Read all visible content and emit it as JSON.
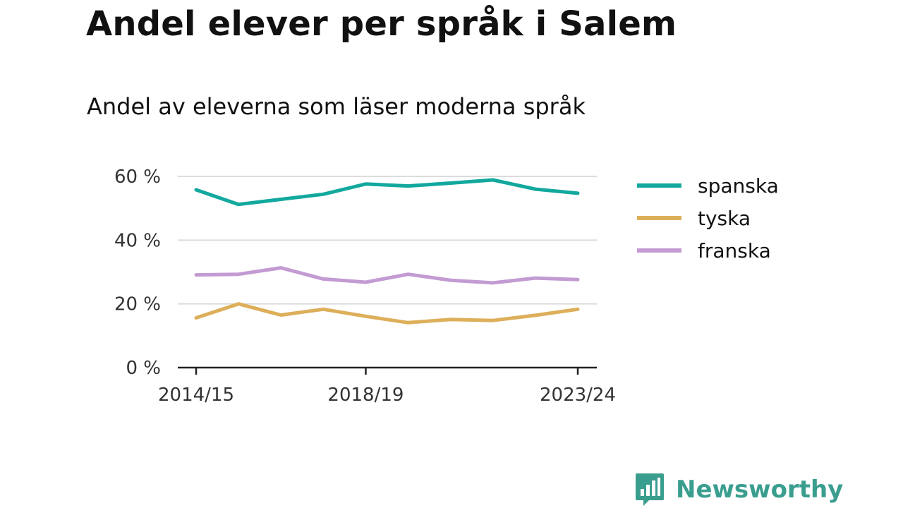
{
  "header": {
    "title": "Andel elever per språk i Salem",
    "subtitle": "Andel av eleverna som läser moderna språk"
  },
  "brand": {
    "name": "Newsworthy",
    "icon": "bar-chart-speech-bubble-icon",
    "color": "#3a9e8f"
  },
  "chart_data": {
    "type": "line",
    "title": "Andel elever per språk i Salem",
    "subtitle": "Andel av eleverna som läser moderna språk",
    "xlabel": "",
    "ylabel": "",
    "x": [
      "2014/15",
      "2015/16",
      "2016/17",
      "2017/18",
      "2018/19",
      "2019/20",
      "2020/21",
      "2021/22",
      "2022/23",
      "2023/24"
    ],
    "x_tick_labels": [
      "2014/15",
      "2018/19",
      "2023/24"
    ],
    "ylim": [
      0,
      60
    ],
    "y_ticks": [
      0,
      20,
      40,
      60
    ],
    "y_tick_labels": [
      "0 %",
      "20 %",
      "40 %",
      "60 %"
    ],
    "grid": true,
    "legend_position": "right",
    "series": [
      {
        "name": "spanska",
        "color": "#13a89e",
        "values": [
          55.8,
          51.2,
          52.8,
          54.4,
          57.6,
          57.0,
          57.9,
          58.9,
          56.0,
          54.7
        ]
      },
      {
        "name": "tyska",
        "color": "#ddaf5a",
        "values": [
          15.6,
          20.0,
          16.5,
          18.3,
          16.1,
          14.1,
          15.1,
          14.8,
          16.4,
          18.3
        ]
      },
      {
        "name": "franska",
        "color": "#c39bd3",
        "values": [
          29.1,
          29.3,
          31.3,
          27.8,
          26.8,
          29.3,
          27.4,
          26.6,
          28.1,
          27.6
        ]
      }
    ]
  }
}
